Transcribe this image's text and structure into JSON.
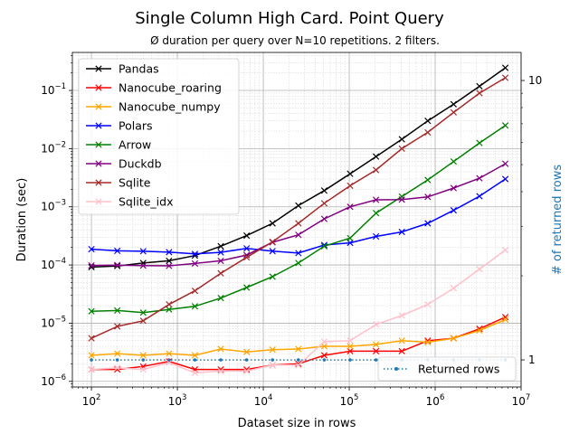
{
  "chart_data": {
    "type": "line",
    "title": "Single Column High Card. Point Query",
    "subtitle": "Ø duration per query over N=10 repetitions. 2 filters.",
    "xlabel": "Dataset size in rows",
    "ylabel": "Duration (sec)",
    "y2label": "# of returned rows",
    "xscale": "log",
    "yscale": "log",
    "xlim": [
      60,
      10000000
    ],
    "ylim": [
      8e-07,
      0.45
    ],
    "y2lim": [
      0.8,
      12.6
    ],
    "xticks": [
      {
        "value": 100,
        "base": "10",
        "exp": "2"
      },
      {
        "value": 1000,
        "base": "10",
        "exp": "3"
      },
      {
        "value": 10000,
        "base": "10",
        "exp": "4"
      },
      {
        "value": 100000,
        "base": "10",
        "exp": "5"
      },
      {
        "value": 1000000,
        "base": "10",
        "exp": "6"
      },
      {
        "value": 10000000,
        "base": "10",
        "exp": "7"
      }
    ],
    "yticks": [
      {
        "value": 1e-06,
        "base": "10",
        "exp": "−6"
      },
      {
        "value": 1e-05,
        "base": "10",
        "exp": "−5"
      },
      {
        "value": 0.0001,
        "base": "10",
        "exp": "−4"
      },
      {
        "value": 0.001,
        "base": "10",
        "exp": "−3"
      },
      {
        "value": 0.01,
        "base": "10",
        "exp": "−2"
      },
      {
        "value": 0.1,
        "base": "10",
        "exp": "−1"
      }
    ],
    "y2ticks": [
      {
        "value": 1,
        "label": "1"
      },
      {
        "value": 10,
        "label": "10"
      }
    ],
    "grid": true,
    "legend_position": "upper-left",
    "legend2_position": "lower-right",
    "x": [
      100,
      200,
      400,
      800,
      1600,
      3200,
      6400,
      12800,
      25600,
      51200,
      102400,
      204800,
      409600,
      819200,
      1638400,
      3276800,
      6553600
    ],
    "series": [
      {
        "name": "Pandas",
        "color": "#000000",
        "values": [
          9.2e-05,
          9.6e-05,
          0.000108,
          0.000118,
          0.000145,
          0.00021,
          0.00032,
          0.00052,
          0.00105,
          0.0019,
          0.0037,
          0.0073,
          0.0145,
          0.03,
          0.058,
          0.118,
          0.245
        ]
      },
      {
        "name": "Nanocube_roaring",
        "color": "#ff0000",
        "values": [
          1.6e-06,
          1.6e-06,
          1.8e-06,
          2.2e-06,
          1.6e-06,
          1.6e-06,
          1.6e-06,
          1.9e-06,
          2e-06,
          2.8e-06,
          3.3e-06,
          3.3e-06,
          3.3e-06,
          5e-06,
          5.5e-06,
          8e-06,
          1.27e-05
        ]
      },
      {
        "name": "Nanocube_numpy",
        "color": "#ffa500",
        "values": [
          2.8e-06,
          3e-06,
          2.8e-06,
          3e-06,
          2.8e-06,
          3.6e-06,
          3.2e-06,
          3.5e-06,
          3.6e-06,
          4e-06,
          4e-06,
          4.3e-06,
          5e-06,
          4.7e-06,
          5.5e-06,
          7.5e-06,
          1.15e-05
        ]
      },
      {
        "name": "Polars",
        "color": "#0000ff",
        "values": [
          0.000187,
          0.000175,
          0.000172,
          0.000166,
          0.000155,
          0.000165,
          0.000193,
          0.000173,
          0.00016,
          0.00022,
          0.00024,
          0.00031,
          0.00037,
          0.00052,
          0.00087,
          0.00152,
          0.003
        ]
      },
      {
        "name": "Arrow",
        "color": "#008000",
        "values": [
          1.6e-05,
          1.65e-05,
          1.52e-05,
          1.72e-05,
          1.95e-05,
          2.7e-05,
          4.1e-05,
          6.3e-05,
          0.000108,
          0.00021,
          0.00029,
          0.00078,
          0.0015,
          0.0029,
          0.006,
          0.0125,
          0.025
        ]
      },
      {
        "name": "Duckdb",
        "color": "#800080",
        "values": [
          9.82e-05,
          9.97e-05,
          9.77e-05,
          9.66e-05,
          0.000106,
          0.000118,
          0.000148,
          0.000245,
          0.00033,
          0.00062,
          0.001,
          0.00132,
          0.00133,
          0.00148,
          0.0021,
          0.0031,
          0.0055
        ]
      },
      {
        "name": "Sqlite",
        "color": "#a52a2a",
        "values": [
          5.5e-06,
          8.8e-06,
          1.1e-05,
          2.1e-05,
          3.6e-05,
          7.2e-05,
          0.000135,
          0.00025,
          0.00052,
          0.00115,
          0.0023,
          0.0043,
          0.01,
          0.019,
          0.042,
          0.09,
          0.165
        ]
      },
      {
        "name": "Sqlite_idx",
        "color": "#ffc0cb",
        "values": [
          1.6e-06,
          1.7e-06,
          1.6e-06,
          2.1e-06,
          1.4e-06,
          1.5e-06,
          1.5e-06,
          1.9e-06,
          1.9e-06,
          4.8e-06,
          5e-06,
          9.5e-06,
          1.35e-05,
          2.1e-05,
          4e-05,
          8.5e-05,
          0.00018
        ]
      }
    ],
    "secondary_series": {
      "name": "Returned rows",
      "color": "#1f77b4",
      "values": [
        1,
        1,
        1,
        1,
        1,
        1,
        1,
        1,
        1,
        1,
        1,
        1,
        1,
        1,
        1,
        1,
        1
      ]
    }
  }
}
